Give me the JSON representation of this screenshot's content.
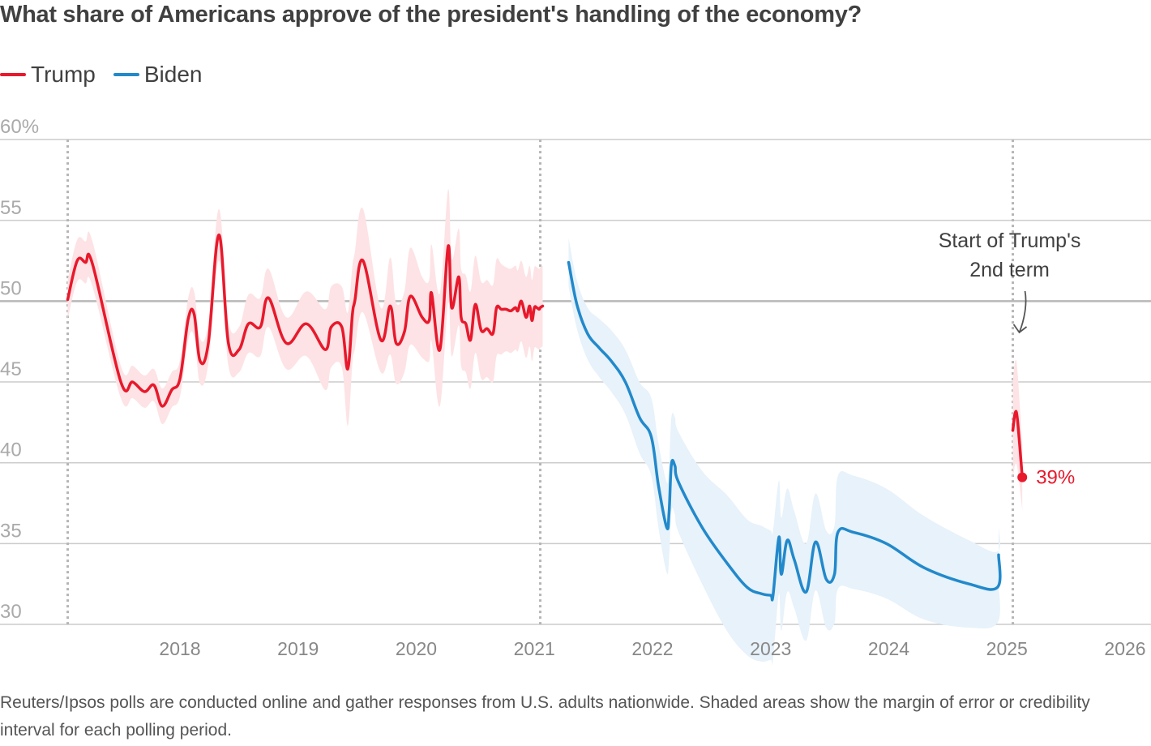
{
  "title": "What share of Americans approve of the president's handling of the economy?",
  "legend": [
    {
      "label": "Trump",
      "color": "#e8192c"
    },
    {
      "label": "Biden",
      "color": "#2289cb"
    }
  ],
  "note": "Reuters/Ipsos polls are conducted online and gather responses from U.S. adults nationwide. Shaded areas show the margin of error or credibility interval for each polling period.",
  "chart_data": {
    "type": "line",
    "title": "What share of Americans approve of the president's handling of the economy?",
    "xlabel": "",
    "ylabel": "",
    "xlim": [
      2017.0,
      2026.2
    ],
    "ylim": [
      30,
      60
    ],
    "y_ticks": [
      {
        "value": 60,
        "label": "60%"
      },
      {
        "value": 55,
        "label": "55"
      },
      {
        "value": 50,
        "label": "50"
      },
      {
        "value": 45,
        "label": "45"
      },
      {
        "value": 40,
        "label": "40"
      },
      {
        "value": 35,
        "label": "35"
      },
      {
        "value": 30,
        "label": "30"
      }
    ],
    "x_ticks": [
      {
        "value": 2018,
        "label": "2018"
      },
      {
        "value": 2019,
        "label": "2019"
      },
      {
        "value": 2020,
        "label": "2020"
      },
      {
        "value": 2021,
        "label": "2021"
      },
      {
        "value": 2022,
        "label": "2022"
      },
      {
        "value": 2023,
        "label": "2023"
      },
      {
        "value": 2024,
        "label": "2024"
      },
      {
        "value": 2025,
        "label": "2025"
      },
      {
        "value": 2026,
        "label": "2026"
      }
    ],
    "reference_lines": [
      2017.05,
      2021.05,
      2025.05
    ],
    "highlight_gridline": 50,
    "grid": true,
    "legend_position": "top-left",
    "series": [
      {
        "name": "Trump",
        "segment": "first-term",
        "color": "#e8192c",
        "band_color": "#fde3e5",
        "x": [
          2017.05,
          2017.13,
          2017.2,
          2017.26,
          2017.5,
          2017.6,
          2017.7,
          2017.78,
          2017.85,
          2017.93,
          2018.0,
          2018.07,
          2018.12,
          2018.17,
          2018.24,
          2018.33,
          2018.41,
          2018.5,
          2018.58,
          2018.68,
          2018.75,
          2018.9,
          2019.07,
          2019.23,
          2019.28,
          2019.37,
          2019.42,
          2019.46,
          2019.48,
          2019.55,
          2019.7,
          2019.78,
          2019.83,
          2019.9,
          2019.95,
          2020.05,
          2020.11,
          2020.13,
          2020.2,
          2020.27,
          2020.3,
          2020.36,
          2020.38,
          2020.42,
          2020.46,
          2020.5,
          2020.55,
          2020.6,
          2020.65,
          2020.68,
          2020.72,
          2020.76,
          2020.8,
          2020.84,
          2020.86,
          2020.89,
          2020.93,
          2020.96,
          2020.98,
          2021.0,
          2021.02,
          2021.04,
          2021.05,
          2021.07
        ],
        "y": [
          50.1,
          52.5,
          52.4,
          52.3,
          45.0,
          45.0,
          44.4,
          44.8,
          43.5,
          44.5,
          45.2,
          48.9,
          49.2,
          46.3,
          47.4,
          54.1,
          47.4,
          47.0,
          48.6,
          48.4,
          50.2,
          47.4,
          48.6,
          47.0,
          48.4,
          48.4,
          45.8,
          49.2,
          50.0,
          52.5,
          47.6,
          49.7,
          47.4,
          48.1,
          50.3,
          49.0,
          48.8,
          50.5,
          47.0,
          53.4,
          49.6,
          51.5,
          49.0,
          48.6,
          47.6,
          49.8,
          48.2,
          48.3,
          48.0,
          49.6,
          49.5,
          49.5,
          49.4,
          49.6,
          49.4,
          50.0,
          49.0,
          49.7,
          48.8,
          49.6,
          49.6,
          49.5,
          49.6,
          49.7
        ],
        "band_width": [
          1.2,
          1.3,
          1.3,
          1.4,
          1.0,
          1.0,
          1.0,
          1.0,
          1.1,
          1.1,
          1.1,
          1.3,
          1.4,
          1.4,
          1.3,
          1.6,
          1.4,
          1.4,
          1.8,
          1.8,
          1.8,
          1.6,
          2.0,
          2.5,
          2.5,
          2.5,
          3.5,
          3.0,
          3.0,
          3.2,
          2.0,
          3.0,
          2.5,
          2.5,
          3.0,
          2.5,
          2.5,
          3.0,
          3.5,
          3.5,
          3.0,
          3.0,
          3.0,
          3.0,
          3.0,
          3.0,
          3.0,
          3.0,
          3.0,
          3.0,
          2.8,
          2.6,
          2.6,
          2.6,
          2.5,
          2.5,
          2.5,
          2.5,
          2.5,
          2.5,
          2.5,
          2.5,
          2.5,
          2.5
        ]
      },
      {
        "name": "Biden",
        "segment": "term",
        "color": "#2289cb",
        "band_color": "#e7f2fa",
        "x": [
          2021.29,
          2021.36,
          2021.45,
          2021.55,
          2021.65,
          2021.77,
          2021.89,
          2021.99,
          2022.05,
          2022.12,
          2022.14,
          2022.16,
          2022.19,
          2022.22,
          2022.42,
          2022.63,
          2022.8,
          2022.92,
          2023.0,
          2023.02,
          2023.07,
          2023.09,
          2023.14,
          2023.2,
          2023.3,
          2023.38,
          2023.47,
          2023.54,
          2023.57,
          2023.7,
          2023.98,
          2024.3,
          2024.68,
          2024.92,
          2024.93
        ],
        "y": [
          52.4,
          49.8,
          48.0,
          47.1,
          46.3,
          45.0,
          42.8,
          41.6,
          38.6,
          36.0,
          36.9,
          39.9,
          39.8,
          38.8,
          36.0,
          33.8,
          32.3,
          31.9,
          31.8,
          31.8,
          35.4,
          33.1,
          35.2,
          34.0,
          32.0,
          35.1,
          32.8,
          33.1,
          35.7,
          35.7,
          35.0,
          33.5,
          32.5,
          32.3,
          34.3
        ],
        "band_width": [
          1.5,
          1.5,
          1.6,
          1.8,
          1.9,
          2.0,
          2.2,
          2.4,
          2.6,
          2.8,
          2.8,
          2.9,
          3.0,
          3.1,
          3.5,
          4.2,
          4.2,
          4.2,
          4.0,
          4.0,
          3.5,
          3.5,
          3.2,
          3.0,
          3.0,
          3.0,
          3.0,
          3.0,
          3.5,
          3.5,
          3.4,
          3.2,
          2.7,
          2.2,
          1.8
        ]
      },
      {
        "name": "Trump",
        "segment": "second-term",
        "color": "#e8192c",
        "band_color": "#fde3e5",
        "x": [
          2025.05,
          2025.07,
          2025.09,
          2025.13
        ],
        "y": [
          42.0,
          43.1,
          42.6,
          39.1
        ],
        "band_width": [
          3.0,
          3.2,
          3.0,
          2.0
        ]
      }
    ],
    "annotations": [
      {
        "text_lines": [
          "Start of Trump's",
          "2nd term"
        ],
        "points_to_x": 2025.05,
        "type": "arrow-label"
      },
      {
        "text": "39%",
        "x": 2025.13,
        "y": 39.1,
        "type": "end-label",
        "color": "#e8192c"
      }
    ]
  }
}
